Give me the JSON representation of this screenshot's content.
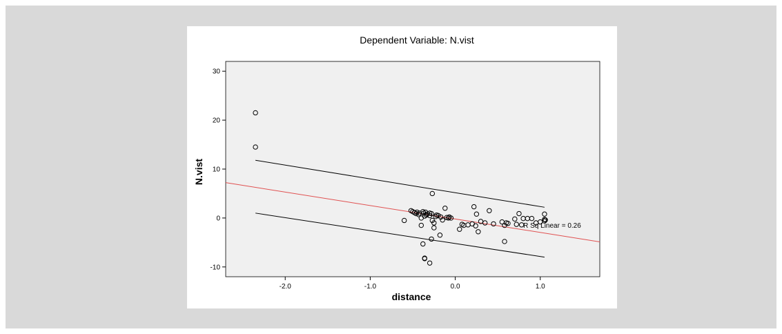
{
  "chart_data": {
    "type": "scatter",
    "title": "Dependent Variable: N.vist",
    "xlabel": "distance",
    "ylabel": "N.vist",
    "xlim": [
      -2.7,
      1.7
    ],
    "ylim": [
      -12,
      32
    ],
    "xticks": [
      -2.0,
      -1.0,
      0.0,
      1.0
    ],
    "xtick_labels": [
      "-2.0",
      "-1.0",
      "0.0",
      "1.0"
    ],
    "yticks": [
      -10,
      0,
      10,
      20,
      30
    ],
    "ytick_labels": [
      "-10",
      "0",
      "10",
      "20",
      "30"
    ],
    "grid": false,
    "points": {
      "x": [
        -2.35,
        -2.35,
        -0.6,
        -0.52,
        -0.5,
        -0.48,
        -0.46,
        -0.45,
        -0.43,
        -0.42,
        -0.4,
        -0.4,
        -0.38,
        -0.37,
        -0.36,
        -0.35,
        -0.34,
        -0.33,
        -0.3,
        -0.3,
        -0.28,
        -0.27,
        -0.25,
        -0.25,
        -0.23,
        -0.22,
        -0.2,
        -0.18,
        -0.17,
        -0.15,
        -0.12,
        -0.1,
        -0.08,
        -0.07,
        -0.05,
        0.05,
        0.08,
        0.1,
        0.15,
        0.2,
        0.22,
        0.24,
        0.25,
        0.27,
        0.3,
        0.35,
        0.4,
        0.45,
        0.55,
        0.58,
        0.58,
        0.6,
        0.62,
        0.7,
        0.72,
        0.75,
        0.78,
        0.8,
        0.85,
        0.9,
        0.95,
        1.0,
        1.05,
        1.05,
        1.05,
        1.06,
        -0.36,
        -0.36,
        -0.3,
        -0.28,
        -0.38,
        -0.27
      ],
      "y": [
        21.5,
        14.5,
        -0.5,
        1.5,
        1.3,
        1.1,
        0.9,
        1.2,
        0.7,
        1.0,
        0.0,
        -1.5,
        1.3,
        1.0,
        0.4,
        1.2,
        0.6,
        0.8,
        1.0,
        0.5,
        0.9,
        -0.5,
        -1.0,
        -2.0,
        0.3,
        0.6,
        0.5,
        -3.5,
        0.2,
        -0.4,
        2.0,
        0.1,
        0.0,
        0.2,
        0.0,
        -2.3,
        -1.3,
        -1.5,
        -1.4,
        -1.2,
        2.3,
        -1.6,
        0.8,
        -2.8,
        -0.7,
        -1.0,
        1.5,
        -1.2,
        -0.8,
        -1.5,
        -4.8,
        -1.0,
        -1.1,
        -0.2,
        -1.3,
        0.9,
        -1.4,
        -0.1,
        -0.1,
        -0.1,
        -1.0,
        -0.8,
        0.8,
        -0.3,
        -0.6,
        -0.4,
        -8.2,
        -8.3,
        -9.2,
        -4.3,
        -5.3,
        5.0
      ]
    },
    "fit_line": {
      "slope": -2.75,
      "intercept": -0.2,
      "color": "#e05050"
    },
    "confidence_band": {
      "x": [
        -2.35,
        1.05
      ],
      "upper": [
        11.8,
        2.2
      ],
      "lower": [
        1.0,
        -8.0
      ]
    },
    "annotation": "R Sq Linear = 0.26",
    "annotation_anchor": [
      0.8,
      -2.0
    ],
    "colors": {
      "panel": "#f0f0f0",
      "point_stroke": "#000000",
      "band_line": "#000000"
    }
  }
}
